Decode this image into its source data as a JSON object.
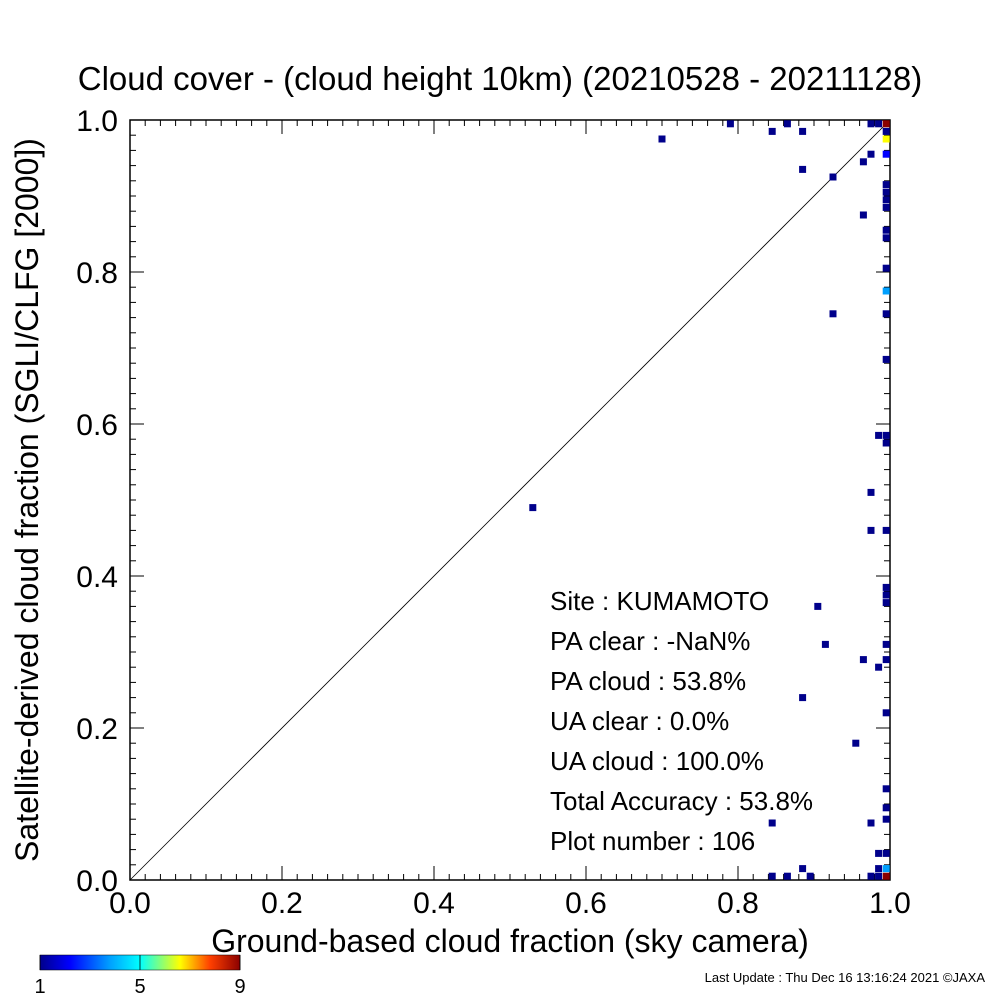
{
  "chart_data": {
    "type": "scatter",
    "title": "Cloud cover - (cloud height 10km)  (20210528 - 20211128)",
    "xlabel": "Ground-based cloud fraction (sky camera)",
    "ylabel": "Satellite-derived cloud fraction (SGLI/CLFG [2000])",
    "xlim": [
      0,
      1
    ],
    "ylim": [
      0,
      1
    ],
    "x_ticks": [
      "0.0",
      "0.2",
      "0.4",
      "0.6",
      "0.8",
      "1.0"
    ],
    "y_ticks": [
      "0.0",
      "0.2",
      "0.4",
      "0.6",
      "0.8",
      "1.0"
    ],
    "reference_line": "y = x",
    "grid": false,
    "points": [
      {
        "x": 0.53,
        "y": 0.49,
        "count": 1
      },
      {
        "x": 0.7,
        "y": 0.975,
        "count": 1
      },
      {
        "x": 0.79,
        "y": 0.995,
        "count": 1
      },
      {
        "x": 0.845,
        "y": 0.985,
        "count": 1
      },
      {
        "x": 0.865,
        "y": 0.995,
        "count": 1
      },
      {
        "x": 0.885,
        "y": 0.985,
        "count": 1
      },
      {
        "x": 0.885,
        "y": 0.935,
        "count": 1
      },
      {
        "x": 0.925,
        "y": 0.925,
        "count": 1
      },
      {
        "x": 0.965,
        "y": 0.945,
        "count": 1
      },
      {
        "x": 0.975,
        "y": 0.955,
        "count": 1
      },
      {
        "x": 0.965,
        "y": 0.875,
        "count": 1
      },
      {
        "x": 0.925,
        "y": 0.745,
        "count": 1
      },
      {
        "x": 0.975,
        "y": 0.995,
        "count": 1
      },
      {
        "x": 0.985,
        "y": 0.995,
        "count": 1
      },
      {
        "x": 0.995,
        "y": 0.995,
        "count": 9
      },
      {
        "x": 0.995,
        "y": 0.985,
        "count": 1
      },
      {
        "x": 0.995,
        "y": 0.975,
        "count": 6
      },
      {
        "x": 0.995,
        "y": 0.955,
        "count": 2
      },
      {
        "x": 0.995,
        "y": 0.915,
        "count": 1
      },
      {
        "x": 0.995,
        "y": 0.905,
        "count": 1
      },
      {
        "x": 0.995,
        "y": 0.895,
        "count": 1
      },
      {
        "x": 0.995,
        "y": 0.885,
        "count": 1
      },
      {
        "x": 0.995,
        "y": 0.855,
        "count": 1
      },
      {
        "x": 0.995,
        "y": 0.845,
        "count": 1
      },
      {
        "x": 0.995,
        "y": 0.805,
        "count": 1
      },
      {
        "x": 0.995,
        "y": 0.775,
        "count": 3
      },
      {
        "x": 0.995,
        "y": 0.745,
        "count": 1
      },
      {
        "x": 0.995,
        "y": 0.685,
        "count": 1
      },
      {
        "x": 0.985,
        "y": 0.585,
        "count": 1
      },
      {
        "x": 0.995,
        "y": 0.585,
        "count": 1
      },
      {
        "x": 0.995,
        "y": 0.575,
        "count": 1
      },
      {
        "x": 0.975,
        "y": 0.51,
        "count": 1
      },
      {
        "x": 0.975,
        "y": 0.46,
        "count": 1
      },
      {
        "x": 0.995,
        "y": 0.46,
        "count": 1
      },
      {
        "x": 0.995,
        "y": 0.385,
        "count": 1
      },
      {
        "x": 0.995,
        "y": 0.375,
        "count": 1
      },
      {
        "x": 0.995,
        "y": 0.365,
        "count": 1
      },
      {
        "x": 0.905,
        "y": 0.36,
        "count": 1
      },
      {
        "x": 0.915,
        "y": 0.31,
        "count": 1
      },
      {
        "x": 0.995,
        "y": 0.31,
        "count": 1
      },
      {
        "x": 0.965,
        "y": 0.29,
        "count": 1
      },
      {
        "x": 0.985,
        "y": 0.28,
        "count": 1
      },
      {
        "x": 0.995,
        "y": 0.29,
        "count": 1
      },
      {
        "x": 0.885,
        "y": 0.24,
        "count": 1
      },
      {
        "x": 0.995,
        "y": 0.22,
        "count": 1
      },
      {
        "x": 0.955,
        "y": 0.18,
        "count": 1
      },
      {
        "x": 0.995,
        "y": 0.12,
        "count": 1
      },
      {
        "x": 0.995,
        "y": 0.095,
        "count": 1
      },
      {
        "x": 0.995,
        "y": 0.08,
        "count": 1
      },
      {
        "x": 0.975,
        "y": 0.075,
        "count": 1
      },
      {
        "x": 0.845,
        "y": 0.075,
        "count": 1
      },
      {
        "x": 0.985,
        "y": 0.035,
        "count": 1
      },
      {
        "x": 0.995,
        "y": 0.035,
        "count": 1
      },
      {
        "x": 0.985,
        "y": 0.015,
        "count": 1
      },
      {
        "x": 0.995,
        "y": 0.015,
        "count": 3
      },
      {
        "x": 0.885,
        "y": 0.015,
        "count": 1
      },
      {
        "x": 0.845,
        "y": 0.005,
        "count": 1
      },
      {
        "x": 0.865,
        "y": 0.005,
        "count": 1
      },
      {
        "x": 0.895,
        "y": 0.005,
        "count": 1
      },
      {
        "x": 0.975,
        "y": 0.005,
        "count": 1
      },
      {
        "x": 0.985,
        "y": 0.005,
        "count": 1
      },
      {
        "x": 0.995,
        "y": 0.005,
        "count": 9
      }
    ],
    "colorbar": {
      "min": 1,
      "max": 9,
      "tick_labels": [
        "1",
        "5",
        "9"
      ],
      "colors": [
        "#00008b",
        "#0000ff",
        "#00a0ff",
        "#00ffff",
        "#ffff00",
        "#ff8000",
        "#ff0000",
        "#8b0000"
      ]
    },
    "stats": [
      {
        "label": "Site : KUMAMOTO"
      },
      {
        "label": "PA clear :  -NaN%"
      },
      {
        "label": "PA cloud :  53.8%"
      },
      {
        "label": "UA clear :   0.0%"
      },
      {
        "label": "UA cloud : 100.0%"
      },
      {
        "label": "Total Accuracy :  53.8%"
      },
      {
        "label": "Plot number :      106"
      }
    ]
  },
  "footer": {
    "last_update": "Last Update : Thu Dec 16 13:16:24 2021  ©JAXA"
  }
}
